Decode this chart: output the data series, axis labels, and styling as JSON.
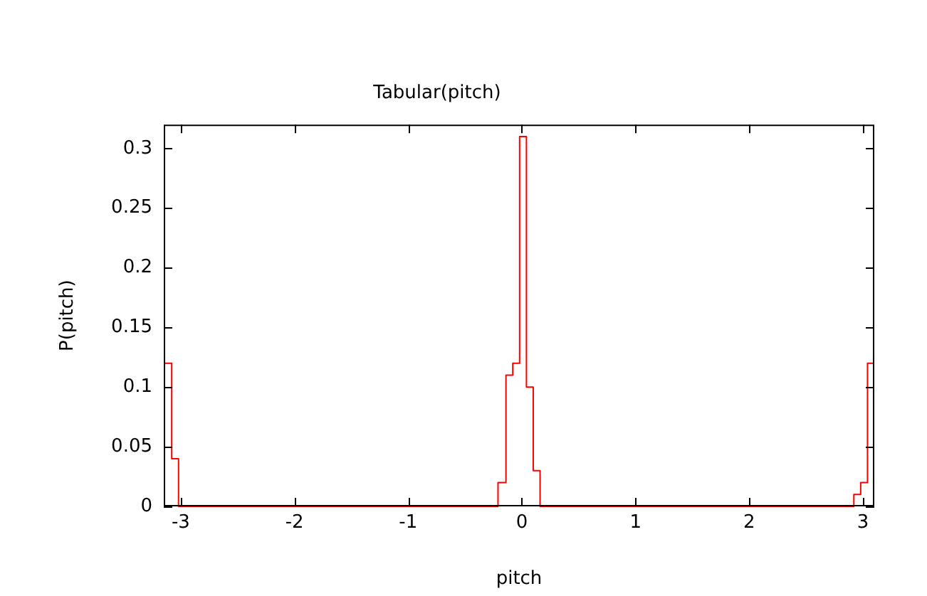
{
  "chart_data": {
    "type": "histogram",
    "title": "Tabular(pitch)",
    "xlabel": "pitch",
    "ylabel": "P(pitch)",
    "bins": [
      -3.15,
      -3.08,
      -3.02,
      -0.21,
      -0.14,
      -0.08,
      -0.02,
      0.04,
      0.1,
      0.16,
      2.92,
      2.98,
      3.04,
      3.1
    ],
    "values": [
      0.12,
      0.04,
      0,
      0.02,
      0.11,
      0.12,
      0.31,
      0.1,
      0.03,
      0,
      0.01,
      0.02,
      0.12
    ],
    "color": "#ff0000",
    "xlim": [
      -3.15,
      3.1
    ],
    "xticks": [
      -3,
      -2,
      -1,
      0,
      1,
      2,
      3
    ],
    "ylim": [
      0,
      0.32
    ],
    "yticks": [
      0,
      0.05,
      0.1,
      0.15,
      0.2,
      0.25,
      0.3
    ],
    "legend": false,
    "grid": false
  }
}
